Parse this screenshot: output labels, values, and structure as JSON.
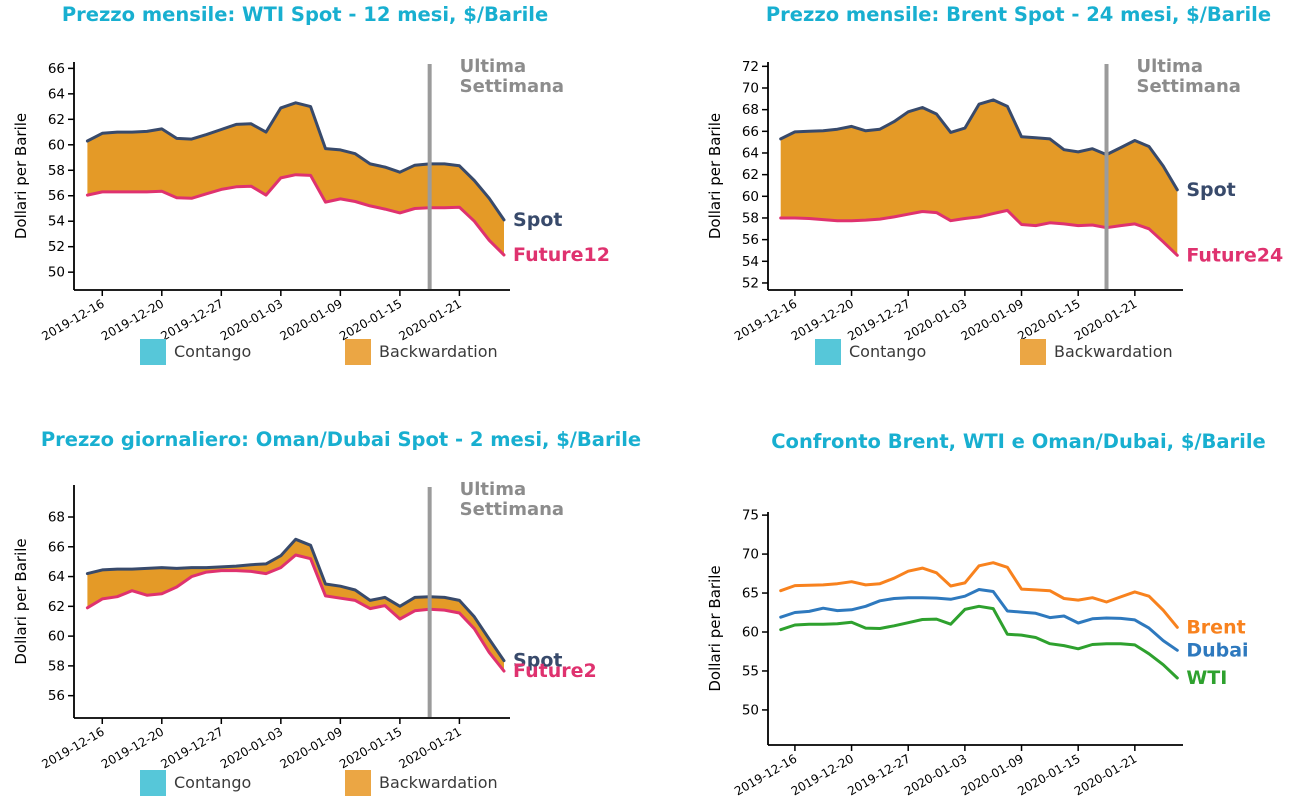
{
  "page": {
    "background": "#ffffff"
  },
  "chart_data": [
    {
      "id": "wti-term-structure",
      "type": "area",
      "title": "Prezzo mensile: WTI Spot - 12 mesi, $/Barile",
      "ylabel": "Dollari per Barile",
      "n_points": 29,
      "xtick_labels": [
        "2019-12-16",
        "2019-12-20",
        "2019-12-27",
        "2020-01-03",
        "2020-01-09",
        "2020-01-15",
        "2020-01-21"
      ],
      "xtick_indices": [
        1,
        5,
        9,
        13,
        17,
        21,
        25
      ],
      "yticks": [
        50,
        52,
        54,
        56,
        58,
        60,
        62,
        64,
        66
      ],
      "ylim": [
        48.6,
        66.5
      ],
      "xlim": [
        -0.9,
        28.4
      ],
      "series": [
        {
          "name": "Spot",
          "color": "#384A6B",
          "values": [
            60.3,
            60.9,
            61.0,
            61.0,
            61.05,
            61.25,
            60.5,
            60.45,
            60.8,
            61.2,
            61.6,
            61.65,
            61.0,
            62.9,
            63.3,
            63.0,
            59.7,
            59.6,
            59.3,
            58.5,
            58.25,
            57.85,
            58.4,
            58.5,
            58.5,
            58.35,
            57.2,
            55.8,
            54.1
          ]
        },
        {
          "name": "Future12",
          "color": "#DF326F",
          "values": [
            56.05,
            56.3,
            56.3,
            56.3,
            56.3,
            56.35,
            55.85,
            55.8,
            56.15,
            56.5,
            56.7,
            56.75,
            56.05,
            57.4,
            57.65,
            57.6,
            55.5,
            55.75,
            55.55,
            55.2,
            54.95,
            54.65,
            55.0,
            55.05,
            55.05,
            55.1,
            54.0,
            52.5,
            51.35
          ]
        }
      ],
      "fill_color": "#E49A27",
      "divider": {
        "x_index": 23,
        "label_lines": [
          "Ultima",
          "Settimana"
        ],
        "color": "#8C8C8C",
        "line_color": "#9B9B9B"
      },
      "legend": [
        {
          "label": "Contango",
          "color": "#56C7D9"
        },
        {
          "label": "Backwardation",
          "color": "#EBA644"
        }
      ]
    },
    {
      "id": "brent-term-structure",
      "type": "area",
      "title": "Prezzo mensile: Brent Spot - 24 mesi, $/Barile",
      "ylabel": "Dollari per Barile",
      "n_points": 29,
      "xtick_labels": [
        "2019-12-16",
        "2019-12-20",
        "2019-12-27",
        "2020-01-03",
        "2020-01-09",
        "2020-01-15",
        "2020-01-21"
      ],
      "xtick_indices": [
        1,
        5,
        9,
        13,
        17,
        21,
        25
      ],
      "yticks": [
        52,
        54,
        56,
        58,
        60,
        62,
        64,
        66,
        68,
        70,
        72
      ],
      "ylim": [
        51.35,
        72.4
      ],
      "xlim": [
        -0.9,
        28.4
      ],
      "series": [
        {
          "name": "Spot",
          "color": "#384A6B",
          "values": [
            65.3,
            65.95,
            66.0,
            66.05,
            66.2,
            66.45,
            66.05,
            66.2,
            66.9,
            67.8,
            68.2,
            67.6,
            65.9,
            66.3,
            68.5,
            68.9,
            68.3,
            65.5,
            65.4,
            65.3,
            64.3,
            64.1,
            64.4,
            63.85,
            64.5,
            65.15,
            64.6,
            62.8,
            60.6
          ]
        },
        {
          "name": "Future24",
          "color": "#DF326F",
          "values": [
            58.0,
            58.0,
            57.95,
            57.85,
            57.75,
            57.75,
            57.8,
            57.9,
            58.1,
            58.35,
            58.6,
            58.5,
            57.75,
            57.95,
            58.1,
            58.4,
            58.7,
            57.4,
            57.3,
            57.55,
            57.45,
            57.3,
            57.35,
            57.1,
            57.3,
            57.45,
            57.0,
            55.8,
            54.55
          ]
        }
      ],
      "fill_color": "#E49A27",
      "divider": {
        "x_index": 23,
        "label_lines": [
          "Ultima",
          "Settimana"
        ],
        "color": "#8C8C8C",
        "line_color": "#9B9B9B"
      },
      "legend": [
        {
          "label": "Contango",
          "color": "#56C7D9"
        },
        {
          "label": "Backwardation",
          "color": "#EBA644"
        }
      ]
    },
    {
      "id": "oman-dubai-term-structure",
      "type": "area",
      "title": "Prezzo giornaliero: Oman/Dubai Spot - 2 mesi, $/Barile",
      "ylabel": "Dollari per Barile",
      "n_points": 29,
      "xtick_labels": [
        "2019-12-16",
        "2019-12-20",
        "2019-12-27",
        "2020-01-03",
        "2020-01-09",
        "2020-01-15",
        "2020-01-21"
      ],
      "xtick_indices": [
        1,
        5,
        9,
        13,
        17,
        21,
        25
      ],
      "yticks": [
        56,
        58,
        60,
        62,
        64,
        66,
        68
      ],
      "ylim": [
        54.5,
        70.15
      ],
      "xlim": [
        -0.9,
        28.4
      ],
      "series": [
        {
          "name": "Spot",
          "color": "#384A6B",
          "values": [
            64.2,
            64.45,
            64.5,
            64.5,
            64.55,
            64.6,
            64.55,
            64.6,
            64.6,
            64.65,
            64.7,
            64.8,
            64.85,
            65.4,
            66.5,
            66.1,
            63.5,
            63.35,
            63.1,
            62.4,
            62.6,
            62.0,
            62.6,
            62.65,
            62.6,
            62.4,
            61.3,
            59.8,
            58.35
          ]
        },
        {
          "name": "Future2",
          "color": "#DF326F",
          "values": [
            61.9,
            62.5,
            62.65,
            63.05,
            62.75,
            62.85,
            63.3,
            64.0,
            64.3,
            64.4,
            64.4,
            64.35,
            64.2,
            64.6,
            65.45,
            65.2,
            62.7,
            62.55,
            62.4,
            61.85,
            62.05,
            61.15,
            61.7,
            61.8,
            61.75,
            61.55,
            60.5,
            58.9,
            57.65
          ]
        }
      ],
      "fill_color": "#E49A27",
      "divider": {
        "x_index": 23,
        "label_lines": [
          "Ultima",
          "Settimana"
        ],
        "color": "#8C8C8C",
        "line_color": "#9B9B9B"
      },
      "legend": [
        {
          "label": "Contango",
          "color": "#56C7D9"
        },
        {
          "label": "Backwardation",
          "color": "#EBA644"
        }
      ]
    },
    {
      "id": "benchmark-comparison",
      "type": "line",
      "title": "Confronto Brent, WTI e Oman/Dubai, $/Barile",
      "ylabel": "Dollari per Barile",
      "n_points": 29,
      "xtick_labels": [
        "2019-12-16",
        "2019-12-20",
        "2019-12-27",
        "2020-01-03",
        "2020-01-09",
        "2020-01-15",
        "2020-01-21"
      ],
      "xtick_indices": [
        1,
        5,
        9,
        13,
        17,
        21,
        25
      ],
      "yticks": [
        50,
        55,
        60,
        65,
        70,
        75
      ],
      "ylim": [
        45.5,
        75.4
      ],
      "xlim": [
        -0.9,
        28.4
      ],
      "series": [
        {
          "name": "Brent",
          "color": "#F8821E",
          "values": [
            65.3,
            65.95,
            66.0,
            66.05,
            66.2,
            66.45,
            66.05,
            66.2,
            66.9,
            67.8,
            68.2,
            67.6,
            65.9,
            66.3,
            68.5,
            68.9,
            68.3,
            65.5,
            65.4,
            65.3,
            64.3,
            64.1,
            64.4,
            63.85,
            64.5,
            65.15,
            64.6,
            62.8,
            60.6
          ]
        },
        {
          "name": "Dubai",
          "color": "#2E79BE",
          "values": [
            61.9,
            62.5,
            62.65,
            63.05,
            62.75,
            62.85,
            63.3,
            64.0,
            64.3,
            64.4,
            64.4,
            64.35,
            64.2,
            64.6,
            65.45,
            65.2,
            62.7,
            62.55,
            62.4,
            61.85,
            62.05,
            61.15,
            61.7,
            61.8,
            61.75,
            61.55,
            60.5,
            58.9,
            57.65
          ]
        },
        {
          "name": "WTI",
          "color": "#2EA12E",
          "values": [
            60.3,
            60.9,
            61.0,
            61.0,
            61.05,
            61.25,
            60.5,
            60.45,
            60.8,
            61.2,
            61.6,
            61.65,
            61.0,
            62.9,
            63.3,
            63.0,
            59.7,
            59.6,
            59.3,
            58.5,
            58.25,
            57.85,
            58.4,
            58.5,
            58.5,
            58.35,
            57.2,
            55.8,
            54.1
          ]
        }
      ]
    }
  ]
}
